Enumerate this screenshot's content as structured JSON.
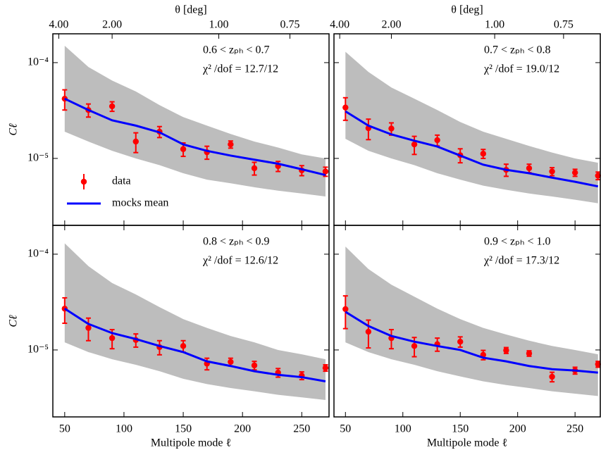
{
  "chart_data": [
    {
      "type": "line",
      "yscale": "log",
      "xlim": [
        40,
        273
      ],
      "ylim": [
        2e-06,
        0.0002
      ],
      "yticks": [
        {
          "value": 0.0001,
          "label": "10⁻⁴"
        },
        {
          "value": 1e-05,
          "label": "10⁻⁵"
        }
      ],
      "ylabel": "Cℓ",
      "xticks": [
        50,
        100,
        150,
        200,
        250
      ],
      "xtick_labels": false,
      "x2label": "θ [deg]",
      "x2ticks": [
        {
          "value": 4,
          "label": "4.00"
        },
        {
          "value": 2,
          "label": "2.00"
        },
        {
          "value": 1,
          "label": "1.00"
        },
        {
          "value": 0.75,
          "label": "0.75"
        }
      ],
      "annotations": [
        "0.6 < zₚₕ < 0.7",
        "χ² /dof = 12.7/12"
      ],
      "legend": "lower left",
      "x": [
        50,
        70,
        90,
        110,
        130,
        150,
        170,
        190,
        210,
        230,
        250,
        270
      ],
      "band": {
        "color": "#bdbdbd",
        "upper": [
          0.00015,
          9e-05,
          6.5e-05,
          5e-05,
          3.6e-05,
          2.7e-05,
          2.2e-05,
          1.8e-05,
          1.5e-05,
          1.3e-05,
          1.1e-05,
          1e-05
        ],
        "lower": [
          1.9e-05,
          1.5e-05,
          1.2e-05,
          1e-05,
          8.5e-06,
          7e-06,
          6e-06,
          5.5e-06,
          5e-06,
          4.6e-06,
          4.3e-06,
          4e-06
        ]
      },
      "series": [
        {
          "name": "data",
          "color": "#ff0000",
          "style": "errorbar",
          "values": [
            4.2e-05,
            3.2e-05,
            3.5e-05,
            1.5e-05,
            1.9e-05,
            1.25e-05,
            1.16e-05,
            1.4e-05,
            7.9e-06,
            8.3e-06,
            7.5e-06,
            7.3e-06
          ],
          "errors": [
            1e-05,
            5e-06,
            4e-06,
            3.5e-06,
            2.5e-06,
            2e-06,
            1.8e-06,
            1.2e-06,
            1.2e-06,
            1e-06,
            9e-07,
            8e-07
          ]
        },
        {
          "name": "mocks mean",
          "color": "#0000ff",
          "style": "line",
          "values": [
            4.2e-05,
            3.2e-05,
            2.5e-05,
            2.2e-05,
            1.87e-05,
            1.4e-05,
            1.2e-05,
            1.07e-05,
            9.7e-06,
            8.8e-06,
            7.7e-06,
            6.7e-06
          ]
        }
      ]
    },
    {
      "type": "line",
      "yscale": "log",
      "xlim": [
        40,
        272
      ],
      "ylim": [
        2e-06,
        0.0002
      ],
      "yticks": [
        0.0001,
        1e-05
      ],
      "ytick_labels": false,
      "xticks": [
        50,
        100,
        150,
        200,
        250
      ],
      "xtick_labels": false,
      "x2label": "θ [deg]",
      "x2ticks": [
        {
          "value": 4,
          "label": "4.00"
        },
        {
          "value": 2,
          "label": "2.00"
        },
        {
          "value": 1,
          "label": "1.00"
        },
        {
          "value": 0.75,
          "label": "0.75"
        }
      ],
      "annotations": [
        "0.7 < zₚₕ < 0.8",
        "χ² /dof = 19.0/12"
      ],
      "x": [
        50,
        70,
        90,
        110,
        130,
        150,
        170,
        190,
        210,
        230,
        250,
        270
      ],
      "band": {
        "color": "#bdbdbd",
        "upper": [
          0.00013,
          8e-05,
          5.5e-05,
          4.2e-05,
          3.2e-05,
          2.4e-05,
          1.9e-05,
          1.6e-05,
          1.35e-05,
          1.15e-05,
          1e-05,
          9e-06
        ],
        "lower": [
          1.6e-05,
          1.2e-05,
          1e-05,
          8.5e-06,
          7e-06,
          6e-06,
          5.2e-06,
          4.7e-06,
          4.3e-06,
          4e-06,
          3.7e-06,
          3.4e-06
        ]
      },
      "series": [
        {
          "color": "#ff0000",
          "style": "errorbar",
          "values": [
            3.4e-05,
            2.07e-05,
            2.05e-05,
            1.4e-05,
            1.55e-05,
            1.08e-05,
            1.12e-05,
            7.6e-06,
            7.9e-06,
            7.3e-06,
            7.1e-06,
            6.6e-06
          ],
          "errors": [
            9e-06,
            5e-06,
            3e-06,
            3e-06,
            2e-06,
            1.8e-06,
            1.2e-06,
            1.1e-06,
            8e-07,
            7e-07,
            6e-07,
            6e-07
          ]
        },
        {
          "color": "#0000ff",
          "style": "line",
          "values": [
            3.1e-05,
            2.2e-05,
            1.78e-05,
            1.53e-05,
            1.33e-05,
            1.07e-05,
            8.6e-06,
            7.6e-06,
            7e-06,
            6.3e-06,
            5.7e-06,
            5.1e-06
          ]
        }
      ]
    },
    {
      "type": "line",
      "yscale": "log",
      "xlim": [
        40,
        273
      ],
      "ylim": [
        2e-06,
        0.0002
      ],
      "yticks": [
        {
          "value": 0.0001,
          "label": "10⁻⁴"
        },
        {
          "value": 1e-05,
          "label": "10⁻⁵"
        }
      ],
      "ylabel": "Cℓ",
      "xticks": [
        50,
        100,
        150,
        200,
        250
      ],
      "xlabel": "Multipole mode ℓ",
      "annotations": [
        "0.8 < zₚₕ < 0.9",
        "χ² /dof = 12.6/12"
      ],
      "x": [
        50,
        70,
        90,
        110,
        130,
        150,
        170,
        190,
        210,
        230,
        250,
        270
      ],
      "band": {
        "color": "#bdbdbd",
        "upper": [
          0.00013,
          7.5e-05,
          5e-05,
          3.8e-05,
          2.8e-05,
          2.1e-05,
          1.7e-05,
          1.4e-05,
          1.2e-05,
          1e-05,
          9e-06,
          8e-06
        ],
        "lower": [
          1.2e-05,
          9.5e-06,
          8e-06,
          7e-06,
          6e-06,
          5e-06,
          4.4e-06,
          4e-06,
          3.7e-06,
          3.4e-06,
          3.2e-06,
          3e-06
        ]
      },
      "series": [
        {
          "color": "#ff0000",
          "style": "errorbar",
          "values": [
            2.7e-05,
            1.7e-05,
            1.33e-05,
            1.27e-05,
            1.07e-05,
            1.1e-05,
            7.2e-06,
            7.5e-06,
            6.9e-06,
            5.8e-06,
            5.4e-06,
            6.5e-06
          ],
          "errors": [
            8e-06,
            4.5e-06,
            3e-06,
            2e-06,
            1.8e-06,
            1.5e-06,
            1e-06,
            7e-07,
            7e-07,
            6e-07,
            5e-07,
            5e-07
          ]
        },
        {
          "color": "#0000ff",
          "style": "line",
          "values": [
            2.7e-05,
            1.87e-05,
            1.5e-05,
            1.3e-05,
            1.1e-05,
            9.5e-06,
            7.6e-06,
            6.8e-06,
            6e-06,
            5.5e-06,
            5.2e-06,
            4.7e-06
          ]
        }
      ]
    },
    {
      "type": "line",
      "yscale": "log",
      "xlim": [
        40,
        272
      ],
      "ylim": [
        2e-06,
        0.0002
      ],
      "yticks": [
        0.0001,
        1e-05
      ],
      "ytick_labels": false,
      "xticks": [
        50,
        100,
        150,
        200,
        250
      ],
      "xlabel": "Multipole mode ℓ",
      "annotations": [
        "0.9 < zₚₕ < 1.0",
        "χ² /dof = 17.3/12"
      ],
      "x": [
        50,
        70,
        90,
        110,
        130,
        150,
        170,
        190,
        210,
        230,
        250,
        270
      ],
      "band": {
        "color": "#bdbdbd",
        "upper": [
          0.00012,
          7e-05,
          4.8e-05,
          3.6e-05,
          2.7e-05,
          2.1e-05,
          1.7e-05,
          1.45e-05,
          1.25e-05,
          1.1e-05,
          1e-05,
          9e-06
        ],
        "lower": [
          1.2e-05,
          9.5e-06,
          8e-06,
          7e-06,
          6e-06,
          5.3e-06,
          4.7e-06,
          4.3e-06,
          4e-06,
          3.7e-06,
          3.5e-06,
          3.3e-06
        ]
      },
      "series": [
        {
          "color": "#ff0000",
          "style": "errorbar",
          "values": [
            2.67e-05,
            1.55e-05,
            1.33e-05,
            1.1e-05,
            1.15e-05,
            1.22e-05,
            8.9e-06,
            9.9e-06,
            9.2e-06,
            5.25e-06,
            6.1e-06,
            7.1e-06
          ],
          "errors": [
            1e-05,
            5e-06,
            3e-06,
            2.5e-06,
            1.8e-06,
            1.5e-06,
            1e-06,
            7e-07,
            6e-07,
            6e-07,
            5e-07,
            5e-07
          ]
        },
        {
          "color": "#0000ff",
          "style": "line",
          "values": [
            2.5e-05,
            1.78e-05,
            1.4e-05,
            1.22e-05,
            1.1e-05,
            1e-05,
            8.3e-06,
            7.6e-06,
            6.8e-06,
            6.3e-06,
            6.1e-06,
            5.8e-06
          ]
        }
      ]
    }
  ]
}
